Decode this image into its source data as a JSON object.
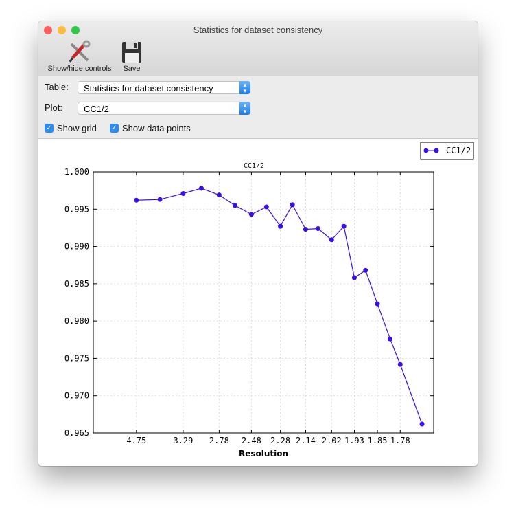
{
  "window": {
    "title": "Statistics for dataset consistency"
  },
  "toolbar": {
    "show_hide_label": "Show/hide controls",
    "save_label": "Save"
  },
  "controls": {
    "table_label": "Table:",
    "table_value": "Statistics for dataset consistency",
    "plot_label": "Plot:",
    "plot_value": "CC1/2",
    "show_grid_label": "Show grid",
    "show_grid": true,
    "show_points_label": "Show data points",
    "show_points": true
  },
  "colors": {
    "series": "#3a10e5"
  },
  "chart_data": {
    "type": "line",
    "title": "CC1/2",
    "xlabel": "Resolution",
    "ylabel": "",
    "x_scale": "1/d^2",
    "grid": true,
    "legend": "top-right",
    "ylim": [
      0.965,
      1.0
    ],
    "yticks": [
      "0.965",
      "0.970",
      "0.975",
      "0.980",
      "0.985",
      "0.990",
      "0.995",
      "1.000"
    ],
    "xticks": [
      "4.75",
      "3.29",
      "2.78",
      "2.48",
      "2.28",
      "2.14",
      "2.02",
      "1.93",
      "1.85",
      "1.78"
    ],
    "series": [
      {
        "name": "CC1/2",
        "x": [
          4.75,
          3.82,
          3.29,
          3.0,
          2.78,
          2.62,
          2.48,
          2.37,
          2.28,
          2.21,
          2.14,
          2.08,
          2.02,
          1.97,
          1.93,
          1.89,
          1.85,
          1.81,
          1.78,
          1.72
        ],
        "y": [
          0.9962,
          0.9963,
          0.9971,
          0.9978,
          0.9969,
          0.9955,
          0.9943,
          0.9953,
          0.9927,
          0.9956,
          0.9923,
          0.9924,
          0.9909,
          0.9927,
          0.9858,
          0.9868,
          0.9823,
          0.9776,
          0.9742,
          0.9662
        ]
      }
    ]
  }
}
